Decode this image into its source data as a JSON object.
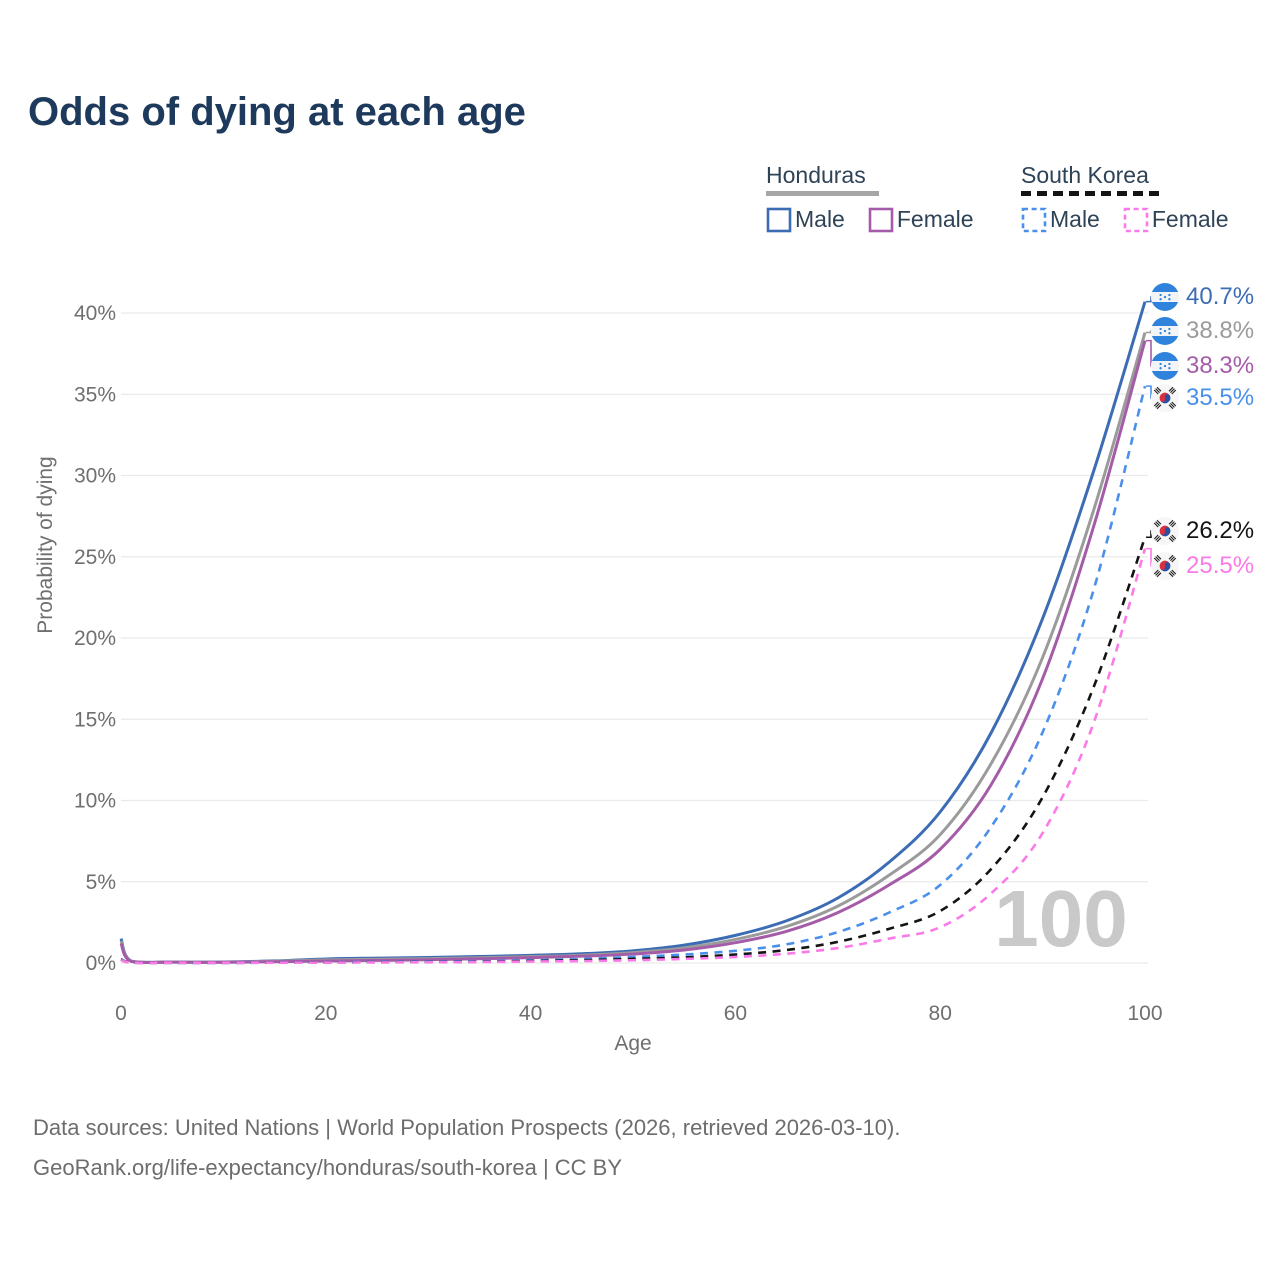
{
  "title": "Odds of dying at each age",
  "legend": {
    "groups": [
      {
        "country": "Honduras",
        "line_color": "#a6a6a6",
        "line_style": "solid",
        "items": [
          {
            "label": "Male",
            "color": "#3c6cb4",
            "dashed": false
          },
          {
            "label": "Female",
            "color": "#a55ca8",
            "dashed": false
          }
        ]
      },
      {
        "country": "South Korea",
        "line_color": "#141414",
        "line_style": "dashed",
        "items": [
          {
            "label": "Male",
            "color": "#4a90ea",
            "dashed": true
          },
          {
            "label": "Female",
            "color": "#fb7ae8",
            "dashed": true
          }
        ]
      }
    ]
  },
  "chart_data": {
    "type": "line",
    "title": "Odds of dying at each age",
    "xlabel": "Age",
    "ylabel": "Probability of dying",
    "x_ticks": [
      0,
      20,
      40,
      60,
      80,
      100
    ],
    "y_ticks_pct": [
      0,
      5,
      10,
      15,
      20,
      25,
      30,
      35,
      40
    ],
    "xlim": [
      0,
      100
    ],
    "ylim_pct": [
      0,
      42
    ],
    "grid": true,
    "legend_position": "top-right",
    "watermark": "100",
    "x_ages": [
      0,
      1,
      5,
      10,
      15,
      20,
      25,
      30,
      35,
      40,
      45,
      50,
      55,
      60,
      65,
      70,
      75,
      80,
      85,
      90,
      95,
      100
    ],
    "series": [
      {
        "name": "Honduras Male",
        "color": "#3c6cb4",
        "dashed": false,
        "flag_icon": "honduras-flag-icon",
        "end_label": "40.7%",
        "values_pct": [
          1.5,
          0.12,
          0.06,
          0.06,
          0.13,
          0.25,
          0.3,
          0.34,
          0.4,
          0.47,
          0.57,
          0.75,
          1.1,
          1.7,
          2.6,
          4.0,
          6.2,
          9.3,
          14.2,
          21.2,
          30.3,
          40.7
        ]
      },
      {
        "name": "Honduras Both sexes",
        "color": "#9b9b9b",
        "dashed": false,
        "flag_icon": "honduras-flag-icon",
        "end_label": "38.8%",
        "values_pct": [
          1.35,
          0.11,
          0.055,
          0.05,
          0.11,
          0.19,
          0.23,
          0.27,
          0.32,
          0.39,
          0.48,
          0.64,
          0.93,
          1.45,
          2.25,
          3.5,
          5.4,
          7.9,
          12.3,
          18.8,
          27.9,
          38.8
        ]
      },
      {
        "name": "Honduras Female",
        "color": "#a55ca8",
        "dashed": false,
        "flag_icon": "honduras-flag-icon",
        "end_label": "38.3%",
        "values_pct": [
          1.2,
          0.1,
          0.05,
          0.045,
          0.08,
          0.12,
          0.16,
          0.2,
          0.26,
          0.33,
          0.42,
          0.55,
          0.8,
          1.25,
          1.95,
          3.1,
          4.8,
          7.0,
          11.0,
          17.5,
          26.9,
          38.3
        ]
      },
      {
        "name": "South Korea Male",
        "color": "#4a90ea",
        "dashed": true,
        "flag_icon": "south-korea-flag-icon",
        "end_label": "35.5%",
        "values_pct": [
          0.25,
          0.03,
          0.015,
          0.012,
          0.03,
          0.05,
          0.07,
          0.09,
          0.12,
          0.17,
          0.25,
          0.37,
          0.52,
          0.75,
          1.15,
          1.9,
          3.1,
          4.8,
          8.4,
          14.2,
          23.0,
          35.5
        ]
      },
      {
        "name": "South Korea Both sexes",
        "color": "#141414",
        "dashed": true,
        "flag_icon": "south-korea-flag-icon",
        "end_label": "26.2%",
        "values_pct": [
          0.22,
          0.025,
          0.013,
          0.01,
          0.02,
          0.035,
          0.05,
          0.06,
          0.08,
          0.12,
          0.17,
          0.25,
          0.35,
          0.52,
          0.8,
          1.3,
          2.1,
          3.2,
          5.8,
          10.2,
          17.0,
          26.2
        ]
      },
      {
        "name": "South Korea Female",
        "color": "#fb7ae8",
        "dashed": true,
        "flag_icon": "south-korea-flag-icon",
        "end_label": "25.5%",
        "values_pct": [
          0.19,
          0.02,
          0.012,
          0.009,
          0.015,
          0.025,
          0.035,
          0.045,
          0.06,
          0.09,
          0.12,
          0.17,
          0.25,
          0.37,
          0.57,
          0.92,
          1.5,
          2.2,
          4.3,
          8.0,
          14.8,
          25.5
        ]
      }
    ]
  },
  "colors": {
    "title": "#1d395c",
    "axis_text": "#6f6f6f",
    "gridline": "#eaeaea",
    "watermark": "#c9c9c9",
    "legend_text": "#2f4357",
    "footer_text": "#6d6d6d"
  },
  "footer": {
    "line1": "Data sources: United Nations | World Population Prospects (2026, retrieved 2026-03-10).",
    "line2": "GeoRank.org/life-expectancy/honduras/south-korea | CC BY"
  }
}
